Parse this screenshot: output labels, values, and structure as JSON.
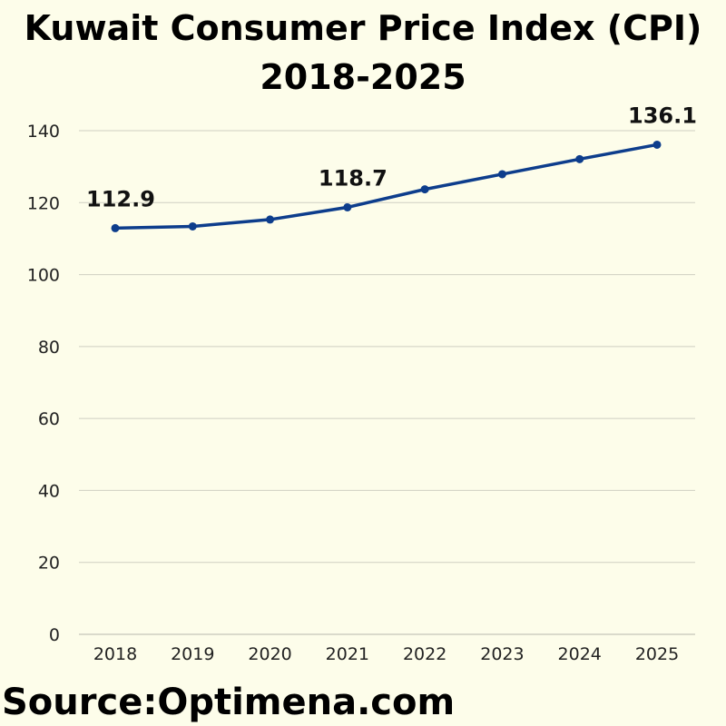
{
  "title_line1": "Kuwait Consumer Price Index (CPI)",
  "title_line2": "2018-2025",
  "source": "Source:Optimena.com",
  "colors": {
    "background": "#fdfdea",
    "line": "#0d3d8c",
    "grid": "#cfcfc2",
    "text": "#000000"
  },
  "chart_data": {
    "type": "line",
    "title": "Kuwait Consumer Price Index (CPI) 2018-2025",
    "xlabel": "",
    "ylabel": "",
    "categories": [
      "2018",
      "2019",
      "2020",
      "2021",
      "2022",
      "2023",
      "2024",
      "2025"
    ],
    "series": [
      {
        "values": [
          112.9,
          113.4,
          115.3,
          118.7,
          123.7,
          127.9,
          132.1,
          136.1
        ]
      }
    ],
    "data_labels": [
      {
        "index": 0,
        "text": "112.9"
      },
      {
        "index": 3,
        "text": "118.7"
      },
      {
        "index": 7,
        "text": "136.1"
      }
    ],
    "ylim": [
      0,
      140
    ],
    "yticks": [
      0,
      20,
      40,
      60,
      80,
      100,
      120,
      140
    ],
    "grid": "horizontal",
    "legend": "none",
    "marker": "circle"
  }
}
